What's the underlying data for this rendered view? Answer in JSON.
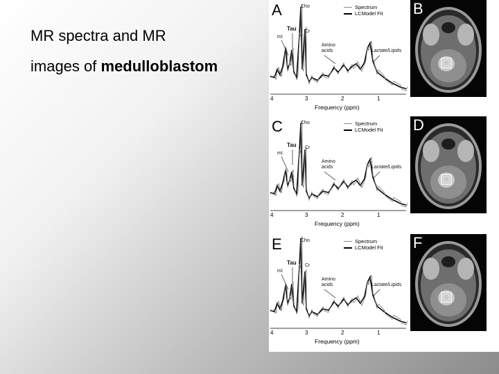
{
  "slide": {
    "title_line1": "MR spectra and MR",
    "title_line2_prefix": "images of ",
    "title_line2_bold": "medulloblastom"
  },
  "panels": [
    {
      "spectrum_letter": "A",
      "mri_letter": "B",
      "labels": {
        "cho": "Cho",
        "cr": "Cr",
        "tau": "Tau",
        "mi": "mI",
        "amino": "Amino\nacids",
        "lactate": "Lactate/Lipids"
      },
      "legend": {
        "spectrum": "Spectrum",
        "fit": "LCModel Fit"
      },
      "ticks": [
        "4",
        "3",
        "2",
        "1"
      ],
      "xaxis": "Frequency (ppm)"
    },
    {
      "spectrum_letter": "C",
      "mri_letter": "D",
      "labels": {
        "cho": "Cho",
        "cr": "Cr",
        "tau": "Tau",
        "mi": "mI",
        "amino": "Amino\nacids",
        "lactate": "Lactate/Lipids"
      },
      "legend": {
        "spectrum": "Spectrum",
        "fit": "LCModel Fit"
      },
      "ticks": [
        "4",
        "3",
        "2",
        "1"
      ],
      "xaxis": "Frequency (ppm)"
    },
    {
      "spectrum_letter": "E",
      "mri_letter": "F",
      "labels": {
        "cho": "Cho",
        "cr": "Cr",
        "tau": "Tau",
        "mi": "mI",
        "amino": "Amino\nacids",
        "lactate": "Lactate/Lipids"
      },
      "legend": {
        "spectrum": "Spectrum",
        "fit": "LCModel Fit"
      },
      "ticks": [
        "4",
        "3",
        "2",
        "1"
      ],
      "xaxis": "Frequency (ppm)"
    }
  ]
}
